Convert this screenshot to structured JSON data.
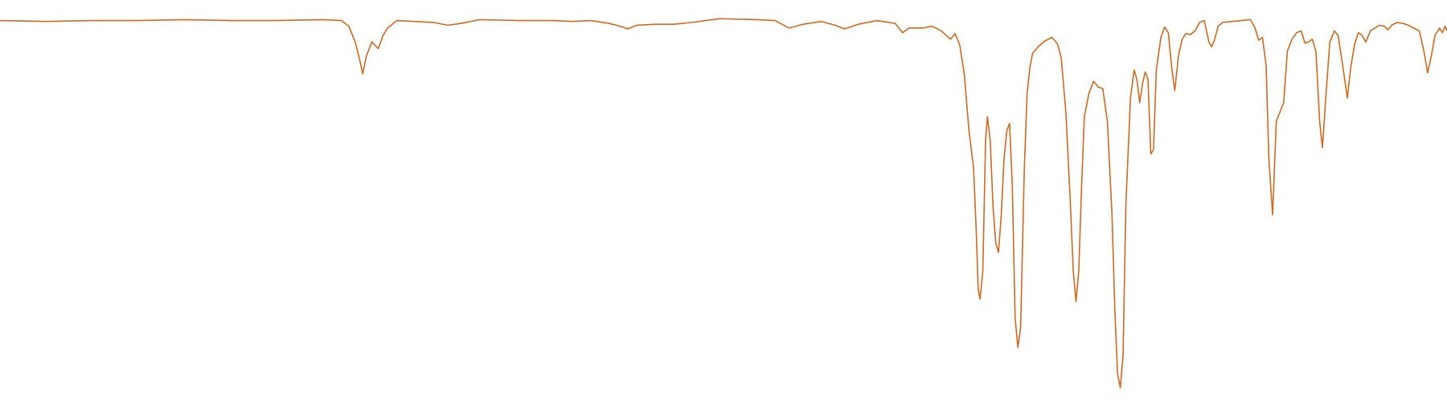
{
  "chart_data": {
    "type": "line",
    "color": "#d2691e",
    "xlim": [
      0,
      1568
    ],
    "ylim": [
      0,
      105
    ],
    "x": [
      0,
      50,
      100,
      150,
      200,
      250,
      300,
      350,
      370,
      378,
      385,
      390,
      393,
      397,
      403,
      408,
      410,
      415,
      420,
      430,
      450,
      470,
      485,
      500,
      520,
      560,
      600,
      620,
      640,
      660,
      675,
      680,
      690,
      710,
      730,
      750,
      780,
      820,
      840,
      855,
      870,
      890,
      905,
      915,
      930,
      950,
      970,
      978,
      985,
      1000,
      1010,
      1020,
      1030,
      1035,
      1040,
      1045,
      1050,
      1055,
      1058,
      1060,
      1062,
      1065,
      1068,
      1070,
      1073,
      1076,
      1079,
      1082,
      1085,
      1088,
      1091,
      1094,
      1097,
      1100,
      1103,
      1106,
      1110,
      1113,
      1116,
      1119,
      1125,
      1132,
      1140,
      1146,
      1150,
      1155,
      1160,
      1163,
      1166,
      1169,
      1172,
      1175,
      1180,
      1185,
      1190,
      1195,
      1200,
      1205,
      1208,
      1211,
      1214,
      1217,
      1220,
      1225,
      1229,
      1232,
      1235,
      1238,
      1241,
      1244,
      1247,
      1250,
      1253,
      1258,
      1262,
      1266,
      1270,
      1273,
      1277,
      1281,
      1285,
      1290,
      1295,
      1300,
      1305,
      1310,
      1313,
      1316,
      1320,
      1325,
      1335,
      1345,
      1355,
      1360,
      1364,
      1368,
      1372,
      1375,
      1379,
      1383,
      1387,
      1391,
      1395,
      1400,
      1405,
      1410,
      1414,
      1418,
      1422,
      1426,
      1430,
      1433,
      1437,
      1441,
      1446,
      1450,
      1455,
      1460,
      1464,
      1468,
      1472,
      1476,
      1480,
      1485,
      1495,
      1500,
      1504,
      1508,
      1514,
      1520,
      1526,
      1532,
      1538,
      1543,
      1547,
      1551,
      1555,
      1560,
      1563,
      1566,
      1568
    ],
    "values": [
      99.5,
      99.25,
      99.5,
      99.5,
      99.75,
      99.5,
      99.5,
      99.75,
      99.5,
      98,
      93.75,
      88.75,
      85.25,
      90,
      93.75,
      92.5,
      92,
      95.5,
      97.5,
      99.5,
      99.25,
      99,
      98.25,
      98.75,
      99.75,
      99.5,
      99.5,
      99.25,
      99.5,
      98.75,
      97.75,
      97.25,
      98.25,
      98.5,
      98.5,
      99,
      100,
      99.75,
      99.5,
      97.5,
      98.5,
      99.25,
      98.25,
      97.25,
      98.5,
      99.5,
      98.75,
      96.25,
      97.5,
      97.5,
      98,
      96.75,
      94.5,
      96,
      93,
      85,
      70,
      60,
      42.5,
      27.5,
      25,
      32.5,
      67.5,
      73.75,
      67.5,
      50,
      40,
      37.5,
      47.5,
      62.5,
      70,
      72,
      55,
      20,
      12,
      17.5,
      60,
      80,
      87,
      90.75,
      92.5,
      94,
      95,
      93.25,
      89.5,
      75,
      50,
      32.5,
      24.25,
      32.5,
      55,
      73.75,
      80,
      83.25,
      81.75,
      81.25,
      72.5,
      47.5,
      22.5,
      5,
      1.25,
      10,
      50,
      78.75,
      86.25,
      83.75,
      77.5,
      82.5,
      85.75,
      83.75,
      63.75,
      65,
      86.25,
      95,
      97.75,
      96.25,
      86.25,
      80.75,
      90,
      94.5,
      96,
      95.75,
      96.75,
      99,
      99.5,
      93.75,
      92.5,
      94.25,
      98,
      99,
      99.25,
      99.5,
      99.75,
      97.5,
      94.25,
      95,
      87.5,
      62.5,
      47.5,
      72.5,
      75,
      77.5,
      91.25,
      94.5,
      96.25,
      96.75,
      93.5,
      93.75,
      94.5,
      91.25,
      72.5,
      65.5,
      80,
      93.75,
      96.75,
      95.5,
      87.5,
      78.75,
      87.5,
      93.25,
      96.25,
      95.5,
      93.75,
      96.75,
      98.25,
      98,
      97,
      98.25,
      99,
      98.75,
      98.25,
      97.5,
      96.75,
      91.25,
      85.5,
      90,
      95.5,
      97.5,
      96.25,
      98,
      96.75
    ]
  }
}
